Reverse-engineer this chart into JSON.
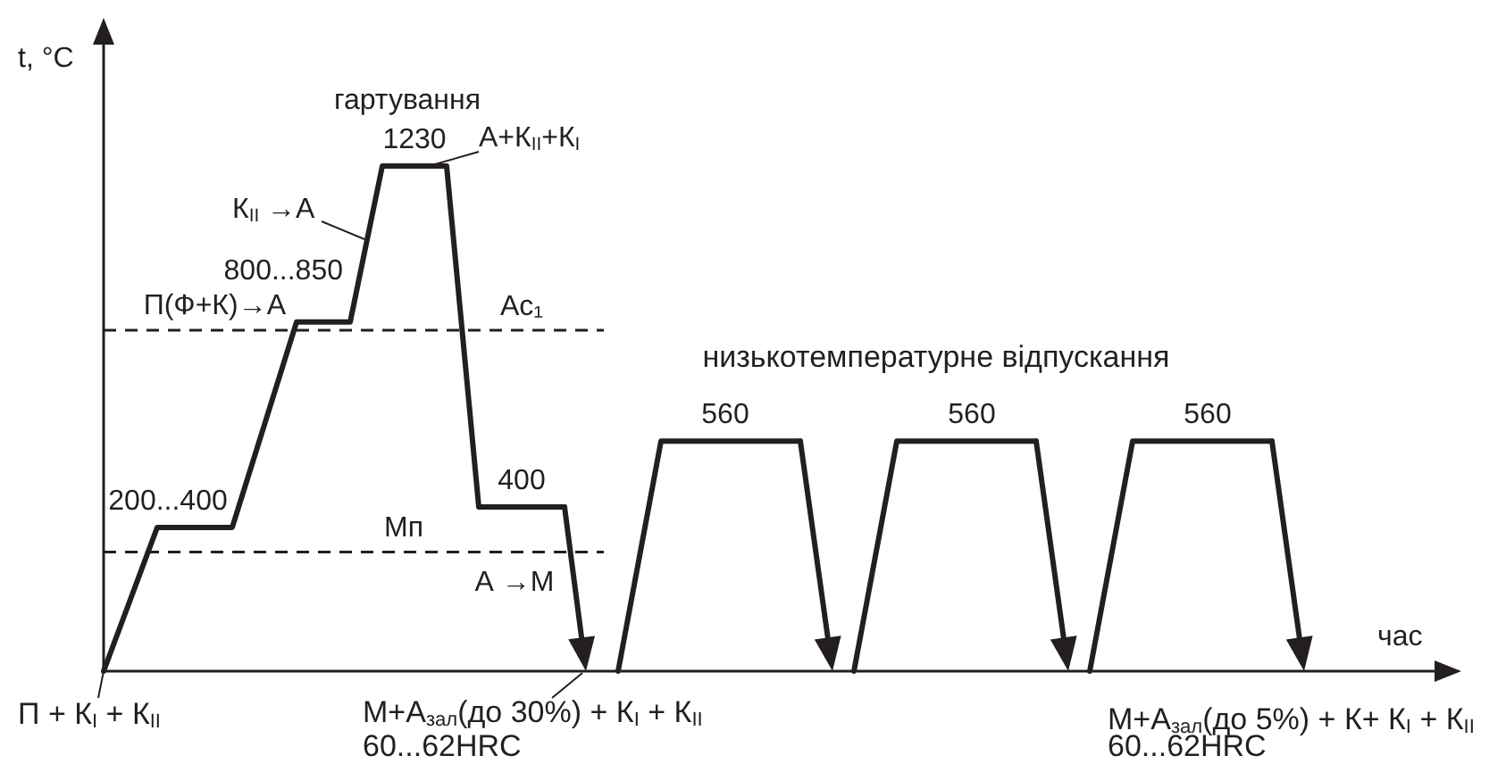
{
  "chart_data": {
    "type": "line",
    "xlabel": "час",
    "ylabel": "t, °C",
    "tick_labels": false,
    "marker": "none",
    "categories": [
      null,
      null,
      null,
      null,
      null,
      null,
      null,
      null,
      null,
      null,
      null,
      null,
      null,
      null,
      null,
      null,
      null,
      null,
      null,
      null,
      null,
      null,
      null,
      null,
      null,
      null,
      null,
      null,
      null,
      null,
      null,
      null,
      null,
      null,
      null,
      null,
      null,
      null,
      null,
      null,
      null,
      null,
      null,
      null,
      null,
      null,
      null,
      null,
      null,
      null,
      null,
      null,
      null,
      null,
      null,
      null,
      null,
      null,
      null,
      null,
      null,
      null,
      null,
      null,
      null,
      null,
      null,
      null,
      null,
      null,
      null,
      null,
      null,
      null,
      null,
      null,
      null,
      null,
      null,
      null,
      null,
      null,
      null,
      null,
      null,
      null,
      null,
      null,
      null,
      null,
      null,
      null,
      null,
      null,
      null,
      null,
      null,
      null,
      null,
      null,
      null,
      null,
      null,
      null,
      null,
      null,
      null,
      null,
      null,
      null,
      null,
      null,
      null
    ],
    "series": [
      {
        "color": "#231f20",
        "values": [
          0,
          null,
          null,
          null,
          null,
          350,
          350,
          null,
          null,
          null,
          null,
          null,
          350,
          null,
          null,
          null,
          null,
          null,
          850,
          null,
          null,
          null,
          null,
          850,
          null,
          null,
          1230,
          null,
          null,
          1230,
          null,
          null,
          1230,
          null,
          null,
          400,
          null,
          null,
          null,
          400,
          null,
          null,
          null,
          400,
          null,
          null,
          null,
          null,
          null,
          null,
          null,
          null,
          null,
          null,
          null,
          null,
          null,
          null,
          null,
          null,
          null,
          null,
          null,
          null,
          null,
          null,
          null,
          null,
          null,
          null,
          null,
          null,
          null,
          null,
          null,
          null,
          null,
          null,
          null,
          null,
          null,
          null,
          null,
          null,
          null,
          null,
          null,
          null,
          null,
          null,
          null,
          null,
          null,
          null,
          null,
          null,
          null,
          null,
          null,
          null,
          null,
          null,
          null,
          null,
          null,
          null,
          null,
          null,
          null,
          null,
          null,
          null,
          null
        ],
        "value_labels": [
          null,
          null,
          null,
          null,
          null,
          null,
          "200...400",
          null,
          null,
          null,
          null,
          null,
          null,
          null,
          null,
          null,
          null,
          null,
          null,
          null,
          null,
          null,
          null,
          "800...850",
          null,
          null,
          null,
          null,
          null,
          "1230",
          null,
          null,
          null,
          null,
          null,
          null,
          null,
          null,
          null,
          "400",
          null,
          null,
          null,
          null,
          null,
          null,
          null,
          null,
          null,
          null,
          null,
          null,
          null,
          null,
          null,
          null,
          null,
          null,
          null,
          null,
          null,
          null,
          null,
          null,
          null,
          null,
          null,
          null,
          null,
          null,
          null,
          null,
          null,
          null,
          null,
          null,
          null,
          null,
          null,
          null,
          null,
          null,
          null,
          null,
          null,
          null,
          null,
          null,
          null,
          null,
          null,
          null,
          null,
          null,
          null,
          null,
          null,
          null,
          null,
          null,
          null,
          null,
          null,
          null,
          null,
          null,
          null,
          null,
          null,
          null,
          null,
          null,
          null
        ]
      },
      {
        "color": "#231f20",
        "values": [
          null,
          null,
          null,
          null,
          null,
          null,
          null,
          null,
          null,
          null,
          null,
          null,
          null,
          null,
          null,
          null,
          null,
          null,
          null,
          null,
          null,
          null,
          null,
          null,
          null,
          null,
          null,
          null,
          null,
          null,
          null,
          null,
          null,
          null,
          null,
          null,
          null,
          null,
          null,
          null,
          null,
          null,
          null,
          null,
          null,
          null,
          null,
          null,
          0,
          null,
          null,
          null,
          560,
          null,
          null,
          null,
          null,
          null,
          560,
          null,
          null,
          null,
          null,
          null,
          null,
          560,
          null,
          null,
          null,
          null,
          null,
          null,
          null,
          null,
          null,
          null,
          null,
          null,
          null,
          null,
          null,
          null,
          null,
          null,
          null,
          null,
          null,
          null,
          null,
          null,
          null,
          null,
          null,
          null,
          null,
          null,
          null,
          null,
          null,
          null,
          null,
          null,
          null,
          null,
          null,
          null,
          null,
          null,
          null,
          null,
          null,
          null,
          null
        ],
        "value_labels": [
          null,
          null,
          null,
          null,
          null,
          null,
          null,
          null,
          null,
          null,
          null,
          null,
          null,
          null,
          null,
          null,
          null,
          null,
          null,
          null,
          null,
          null,
          null,
          null,
          null,
          null,
          null,
          null,
          null,
          null,
          null,
          null,
          null,
          null,
          null,
          null,
          null,
          null,
          null,
          null,
          null,
          null,
          null,
          null,
          null,
          null,
          null,
          null,
          null,
          null,
          null,
          null,
          null,
          null,
          null,
          null,
          null,
          null,
          "560",
          null,
          null,
          null,
          null,
          null,
          null,
          null,
          null,
          null,
          null,
          null,
          null,
          null,
          null,
          null,
          null,
          null,
          null,
          null,
          null,
          null,
          null,
          null,
          null,
          null,
          null,
          null,
          null,
          null,
          null,
          null,
          null,
          null,
          null,
          null,
          null,
          null,
          null,
          null,
          null,
          null,
          null,
          null,
          null,
          null,
          null,
          null,
          null,
          null,
          null,
          null,
          null,
          null,
          null
        ]
      },
      {
        "color": "#231f20",
        "values": [
          null,
          null,
          null,
          null,
          null,
          null,
          null,
          null,
          null,
          null,
          null,
          null,
          null,
          null,
          null,
          null,
          null,
          null,
          null,
          null,
          null,
          null,
          null,
          null,
          null,
          null,
          null,
          null,
          null,
          null,
          null,
          null,
          null,
          null,
          null,
          null,
          null,
          null,
          null,
          null,
          null,
          null,
          null,
          null,
          null,
          null,
          null,
          null,
          null,
          null,
          null,
          null,
          null,
          null,
          null,
          null,
          null,
          null,
          null,
          null,
          null,
          null,
          null,
          null,
          null,
          null,
          null,
          null,
          null,
          null,
          0,
          null,
          null,
          null,
          560,
          null,
          null,
          null,
          null,
          null,
          null,
          560,
          null,
          null,
          null,
          null,
          null,
          560,
          null,
          null,
          null,
          null,
          null,
          null,
          null,
          null,
          null,
          null,
          null,
          null,
          null,
          null,
          null,
          null,
          null,
          null,
          null,
          null,
          null,
          null,
          null,
          null,
          null
        ],
        "value_labels": [
          null,
          null,
          null,
          null,
          null,
          null,
          null,
          null,
          null,
          null,
          null,
          null,
          null,
          null,
          null,
          null,
          null,
          null,
          null,
          null,
          null,
          null,
          null,
          null,
          null,
          null,
          null,
          null,
          null,
          null,
          null,
          null,
          null,
          null,
          null,
          null,
          null,
          null,
          null,
          null,
          null,
          null,
          null,
          null,
          null,
          null,
          null,
          null,
          null,
          null,
          null,
          null,
          null,
          null,
          null,
          null,
          null,
          null,
          null,
          null,
          null,
          null,
          null,
          null,
          null,
          null,
          null,
          null,
          null,
          null,
          null,
          null,
          null,
          null,
          null,
          null,
          null,
          null,
          null,
          null,
          null,
          "560",
          null,
          null,
          null,
          null,
          null,
          null,
          null,
          null,
          null,
          null,
          null,
          null,
          null,
          null,
          null,
          null,
          null,
          null,
          null,
          null,
          null,
          null,
          null,
          null,
          null,
          null,
          null,
          null,
          null,
          null,
          null
        ]
      },
      {
        "color": "#231f20",
        "values": [
          null,
          null,
          null,
          null,
          null,
          null,
          null,
          null,
          null,
          null,
          null,
          null,
          null,
          null,
          null,
          null,
          null,
          null,
          null,
          null,
          null,
          null,
          null,
          null,
          null,
          null,
          null,
          null,
          null,
          null,
          null,
          null,
          null,
          null,
          null,
          null,
          null,
          null,
          null,
          null,
          null,
          null,
          null,
          null,
          null,
          null,
          null,
          null,
          null,
          null,
          null,
          null,
          null,
          null,
          null,
          null,
          null,
          null,
          null,
          null,
          null,
          null,
          null,
          null,
          null,
          null,
          null,
          null,
          null,
          null,
          null,
          null,
          null,
          null,
          null,
          null,
          null,
          null,
          null,
          null,
          null,
          null,
          null,
          null,
          null,
          null,
          null,
          null,
          null,
          null,
          null,
          null,
          0,
          null,
          null,
          null,
          560,
          null,
          null,
          null,
          null,
          null,
          null,
          560,
          null,
          null,
          null,
          null,
          null,
          560,
          null,
          null,
          null
        ],
        "value_labels": [
          null,
          null,
          null,
          null,
          null,
          null,
          null,
          null,
          null,
          null,
          null,
          null,
          null,
          null,
          null,
          null,
          null,
          null,
          null,
          null,
          null,
          null,
          null,
          null,
          null,
          null,
          null,
          null,
          null,
          null,
          null,
          null,
          null,
          null,
          null,
          null,
          null,
          null,
          null,
          null,
          null,
          null,
          null,
          null,
          null,
          null,
          null,
          null,
          null,
          null,
          null,
          null,
          null,
          null,
          null,
          null,
          null,
          null,
          null,
          null,
          null,
          null,
          null,
          null,
          null,
          null,
          null,
          null,
          null,
          null,
          null,
          null,
          null,
          null,
          null,
          null,
          null,
          null,
          null,
          null,
          null,
          null,
          null,
          null,
          null,
          null,
          null,
          null,
          null,
          null,
          null,
          null,
          null,
          null,
          null,
          null,
          null,
          null,
          null,
          null,
          null,
          null,
          null,
          "560",
          null,
          null,
          null,
          null,
          null,
          null,
          null,
          null,
          null
        ]
      }
    ],
    "ref_lines": [
      {
        "axis": "y",
        "value": 830,
        "label": "Ac₁",
        "line_style": "dashed"
      },
      {
        "axis": "y",
        "value": 290,
        "label": "Мп",
        "line_style": "dashed"
      }
    ],
    "annotations": [
      "гартування",
      "А+К$_{II}$+К$_{I}$",
      "К$_{II}$ →А",
      "П(Ф+К)→А",
      "низькотемпературне відпускання",
      "А →М",
      "П + К$_{I}$ + К$_{II}$",
      "М+А$_{зал}$(до 30%) + К$_{I}$ + К$_{II}$",
      "60...62HRC",
      "М+А$_{зал}$(до 5%) + К+ К$_{I}$ + К$_{II}$",
      "60...62HRC"
    ]
  }
}
